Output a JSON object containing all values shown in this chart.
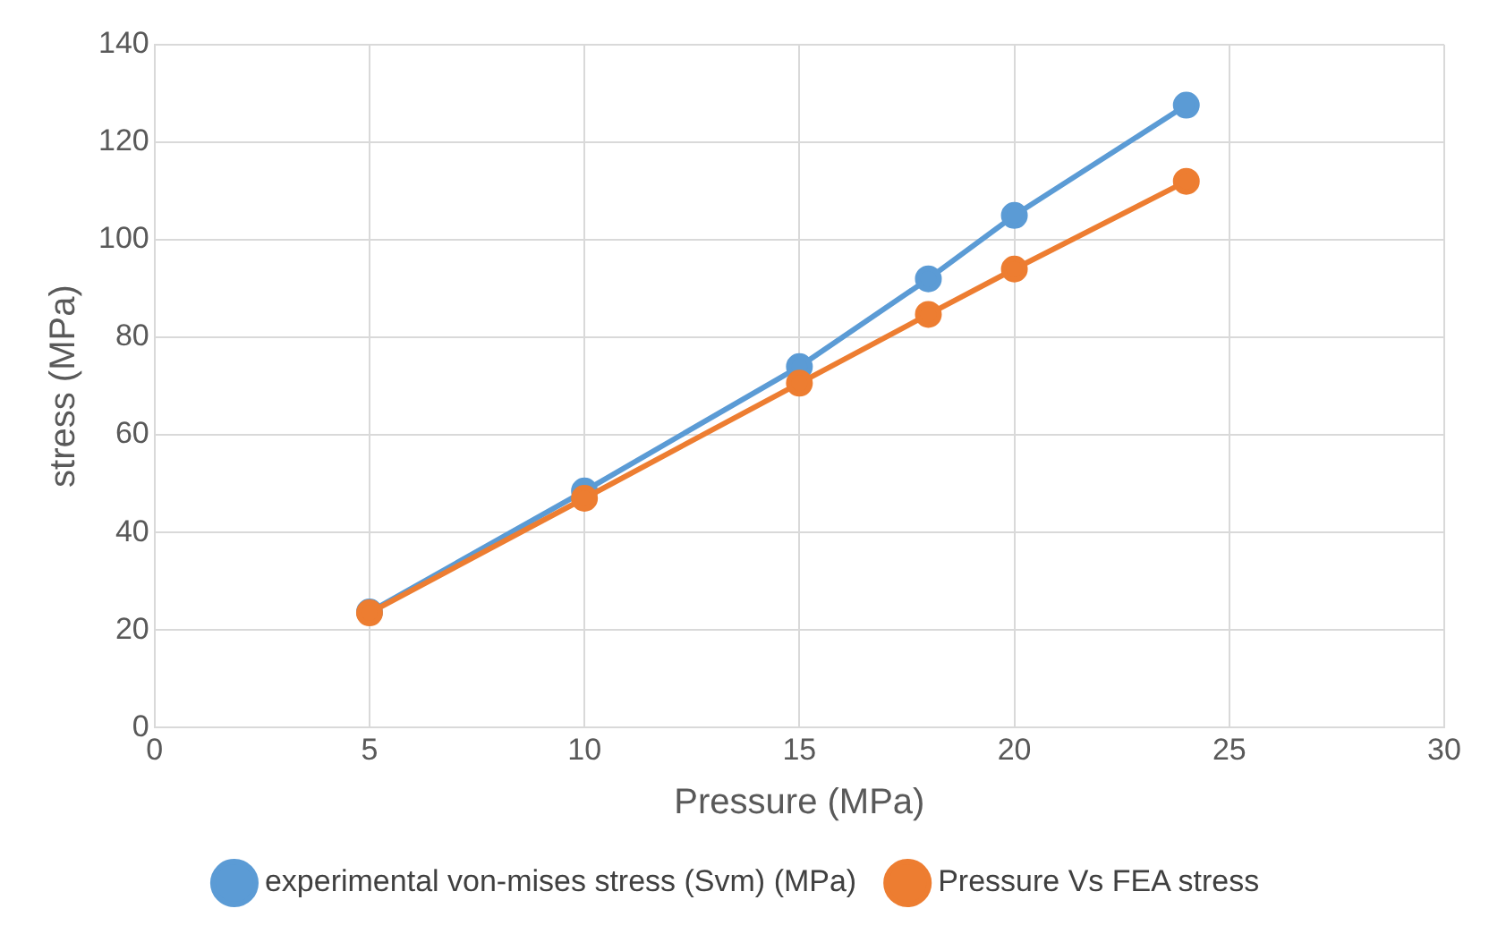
{
  "chart_data": {
    "type": "line",
    "xlabel": "Pressure (MPa)",
    "ylabel": "stress (MPa)",
    "x": [
      5,
      10,
      15,
      18,
      20,
      24
    ],
    "series": [
      {
        "name": "experimental von-mises stress (Svm) (MPa)",
        "color": "#5b9bd5",
        "values": [
          23.7,
          48.5,
          74,
          92,
          105,
          127.6
        ]
      },
      {
        "name": "Pressure Vs FEA stress",
        "color": "#ed7d31",
        "values": [
          23.5,
          47,
          70.6,
          84.7,
          94,
          112
        ]
      }
    ],
    "xlim": [
      0,
      30
    ],
    "xticks": [
      0,
      5,
      10,
      15,
      20,
      25,
      30
    ],
    "ylim": [
      0,
      140
    ],
    "yticks": [
      0,
      20,
      40,
      60,
      80,
      100,
      120,
      140
    ],
    "grid": true,
    "legend": "bottom",
    "marker": "circle",
    "line_style": "solid"
  }
}
